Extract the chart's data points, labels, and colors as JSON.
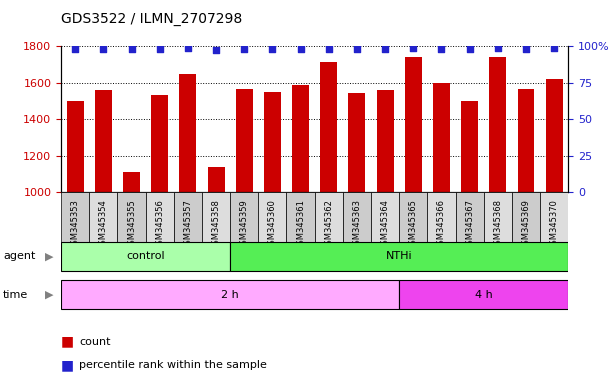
{
  "title": "GDS3522 / ILMN_2707298",
  "samples": [
    "GSM345353",
    "GSM345354",
    "GSM345355",
    "GSM345356",
    "GSM345357",
    "GSM345358",
    "GSM345359",
    "GSM345360",
    "GSM345361",
    "GSM345362",
    "GSM345363",
    "GSM345364",
    "GSM345365",
    "GSM345366",
    "GSM345367",
    "GSM345368",
    "GSM345369",
    "GSM345370"
  ],
  "counts": [
    1500,
    1560,
    1110,
    1530,
    1645,
    1135,
    1565,
    1550,
    1585,
    1715,
    1545,
    1560,
    1740,
    1595,
    1500,
    1740,
    1565,
    1620
  ],
  "percentile_ranks": [
    98,
    98,
    98,
    98,
    99,
    97,
    98,
    98,
    98,
    98,
    98,
    98,
    99,
    98,
    98,
    99,
    98,
    99
  ],
  "bar_color": "#cc0000",
  "dot_color": "#2222cc",
  "ylim_left": [
    1000,
    1800
  ],
  "ylim_right": [
    0,
    100
  ],
  "yticks_left": [
    1000,
    1200,
    1400,
    1600,
    1800
  ],
  "yticks_right": [
    0,
    25,
    50,
    75,
    100
  ],
  "agent_groups": [
    {
      "label": "control",
      "start": 0,
      "end": 6,
      "color": "#aaffaa"
    },
    {
      "label": "NTHi",
      "start": 6,
      "end": 18,
      "color": "#55ee55"
    }
  ],
  "time_groups": [
    {
      "label": "2 h",
      "start": 0,
      "end": 12,
      "color": "#ffaaff"
    },
    {
      "label": "4 h",
      "start": 12,
      "end": 18,
      "color": "#ee44ee"
    }
  ],
  "tick_bg_color": "#cccccc",
  "tick_bg_color_alt": "#dddddd"
}
